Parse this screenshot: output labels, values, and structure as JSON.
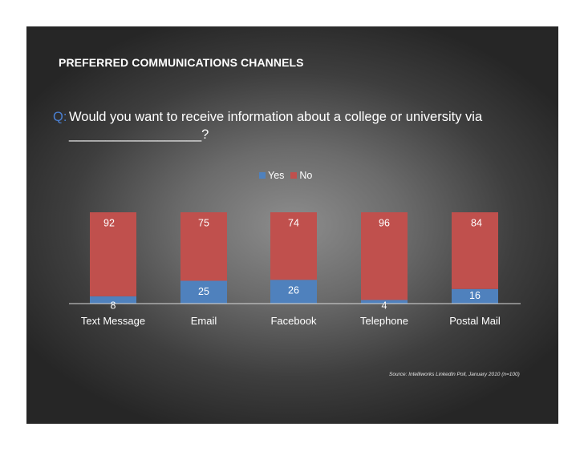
{
  "heading": "PREFERRED COMMUNICATIONS CHANNELS",
  "question": {
    "prefix": "Q:",
    "text": "Would you want to receive information about a college or university via __________________?"
  },
  "source": "Source: Intelliworks LinkedIn Poll, January 2010 (n=100)",
  "colors": {
    "yes": "#4f81bd",
    "no": "#c0504d",
    "axis": "#d9d9d9",
    "text": "#ffffff"
  },
  "chart_data": {
    "type": "bar",
    "stacked": true,
    "percent": true,
    "categories": [
      "Text Message",
      "Email",
      "Facebook",
      "Telephone",
      "Postal Mail"
    ],
    "series": [
      {
        "name": "Yes",
        "values": [
          8,
          25,
          26,
          4,
          16
        ]
      },
      {
        "name": "No",
        "values": [
          92,
          75,
          74,
          96,
          84
        ]
      }
    ],
    "ylim": [
      0,
      100
    ],
    "legend": "top",
    "grid": false
  }
}
